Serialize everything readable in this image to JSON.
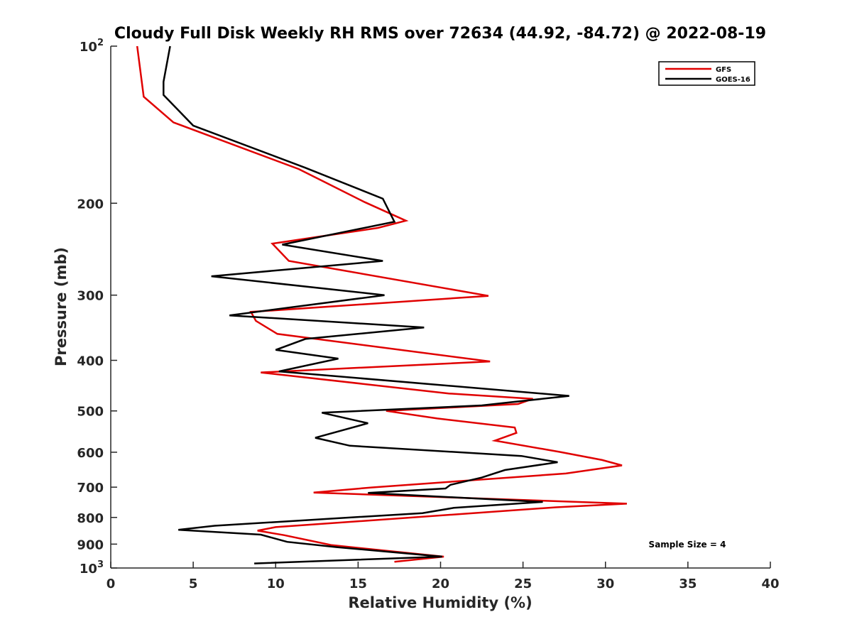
{
  "chart_data": {
    "type": "line",
    "title": "Cloudy Full Disk Weekly RH RMS over 72634 (44.92, -84.72) @ 2022-08-19",
    "xlabel": "Relative Humidity (%)",
    "ylabel": "Pressure (mb)",
    "xlim": [
      0,
      40
    ],
    "ylim": [
      100,
      1000
    ],
    "y_scale": "log",
    "y_reversed": true,
    "grid": false,
    "legend_position": "top-right",
    "x_ticks": [
      "0",
      "5",
      "10",
      "15",
      "20",
      "25",
      "30",
      "35",
      "40"
    ],
    "y_ticks": [
      {
        "value": 100,
        "base": "10",
        "exp": "2"
      },
      {
        "value": 200,
        "label": "200"
      },
      {
        "value": 300,
        "label": "300"
      },
      {
        "value": 400,
        "label": "400"
      },
      {
        "value": 500,
        "label": "500"
      },
      {
        "value": 600,
        "label": "600"
      },
      {
        "value": 700,
        "label": "700"
      },
      {
        "value": 800,
        "label": "800"
      },
      {
        "value": 900,
        "label": "900"
      },
      {
        "value": 1000,
        "base": "10",
        "exp": "3"
      }
    ],
    "annotation": "Sample Size = 4",
    "series": [
      {
        "name": "GFS",
        "color": "#e00000",
        "points": [
          [
            1.6,
            100
          ],
          [
            2.0,
            125
          ],
          [
            3.8,
            140
          ],
          [
            11.4,
            172
          ],
          [
            15.4,
            199
          ],
          [
            17.9,
            216
          ],
          [
            16.2,
            223
          ],
          [
            9.8,
            239
          ],
          [
            10.8,
            258
          ],
          [
            22.9,
            301
          ],
          [
            8.5,
            323
          ],
          [
            8.8,
            336
          ],
          [
            10.1,
            356
          ],
          [
            23.0,
            402
          ],
          [
            9.1,
            422
          ],
          [
            20.5,
            463
          ],
          [
            25.6,
            474
          ],
          [
            24.7,
            485
          ],
          [
            16.7,
            500
          ],
          [
            19.8,
            517
          ],
          [
            24.5,
            538
          ],
          [
            24.6,
            551
          ],
          [
            23.3,
            570
          ],
          [
            27.2,
            599
          ],
          [
            29.8,
            621
          ],
          [
            31.0,
            636
          ],
          [
            27.6,
            659
          ],
          [
            15.8,
            701
          ],
          [
            12.3,
            717
          ],
          [
            31.3,
            753
          ],
          [
            27.0,
            765
          ],
          [
            10.0,
            835
          ],
          [
            8.9,
            848
          ],
          [
            10.5,
            865
          ],
          [
            13.4,
            904
          ],
          [
            20.2,
            951
          ],
          [
            17.2,
            973
          ]
        ]
      },
      {
        "name": "GOES-16",
        "color": "#000000",
        "points": [
          [
            3.6,
            100
          ],
          [
            3.2,
            117
          ],
          [
            3.2,
            124
          ],
          [
            5.0,
            142
          ],
          [
            11.8,
            171
          ],
          [
            16.5,
            196
          ],
          [
            17.2,
            217
          ],
          [
            10.4,
            240
          ],
          [
            16.5,
            258
          ],
          [
            6.1,
            276
          ],
          [
            16.6,
            300
          ],
          [
            7.2,
            328
          ],
          [
            19.0,
            346
          ],
          [
            11.8,
            364
          ],
          [
            10.0,
            382
          ],
          [
            13.8,
            397
          ],
          [
            10.2,
            420
          ],
          [
            27.8,
            468
          ],
          [
            22.5,
            488
          ],
          [
            12.8,
            504
          ],
          [
            15.6,
            528
          ],
          [
            12.4,
            563
          ],
          [
            14.5,
            583
          ],
          [
            24.9,
            610
          ],
          [
            27.1,
            627
          ],
          [
            23.9,
            649
          ],
          [
            22.5,
            671
          ],
          [
            20.6,
            693
          ],
          [
            20.3,
            704
          ],
          [
            15.6,
            718
          ],
          [
            26.2,
            747
          ],
          [
            20.8,
            767
          ],
          [
            18.9,
            785
          ],
          [
            6.3,
            830
          ],
          [
            4.1,
            845
          ],
          [
            9.1,
            863
          ],
          [
            10.7,
            891
          ],
          [
            13.7,
            912
          ],
          [
            20.1,
            951
          ],
          [
            8.7,
            980
          ]
        ]
      }
    ]
  }
}
